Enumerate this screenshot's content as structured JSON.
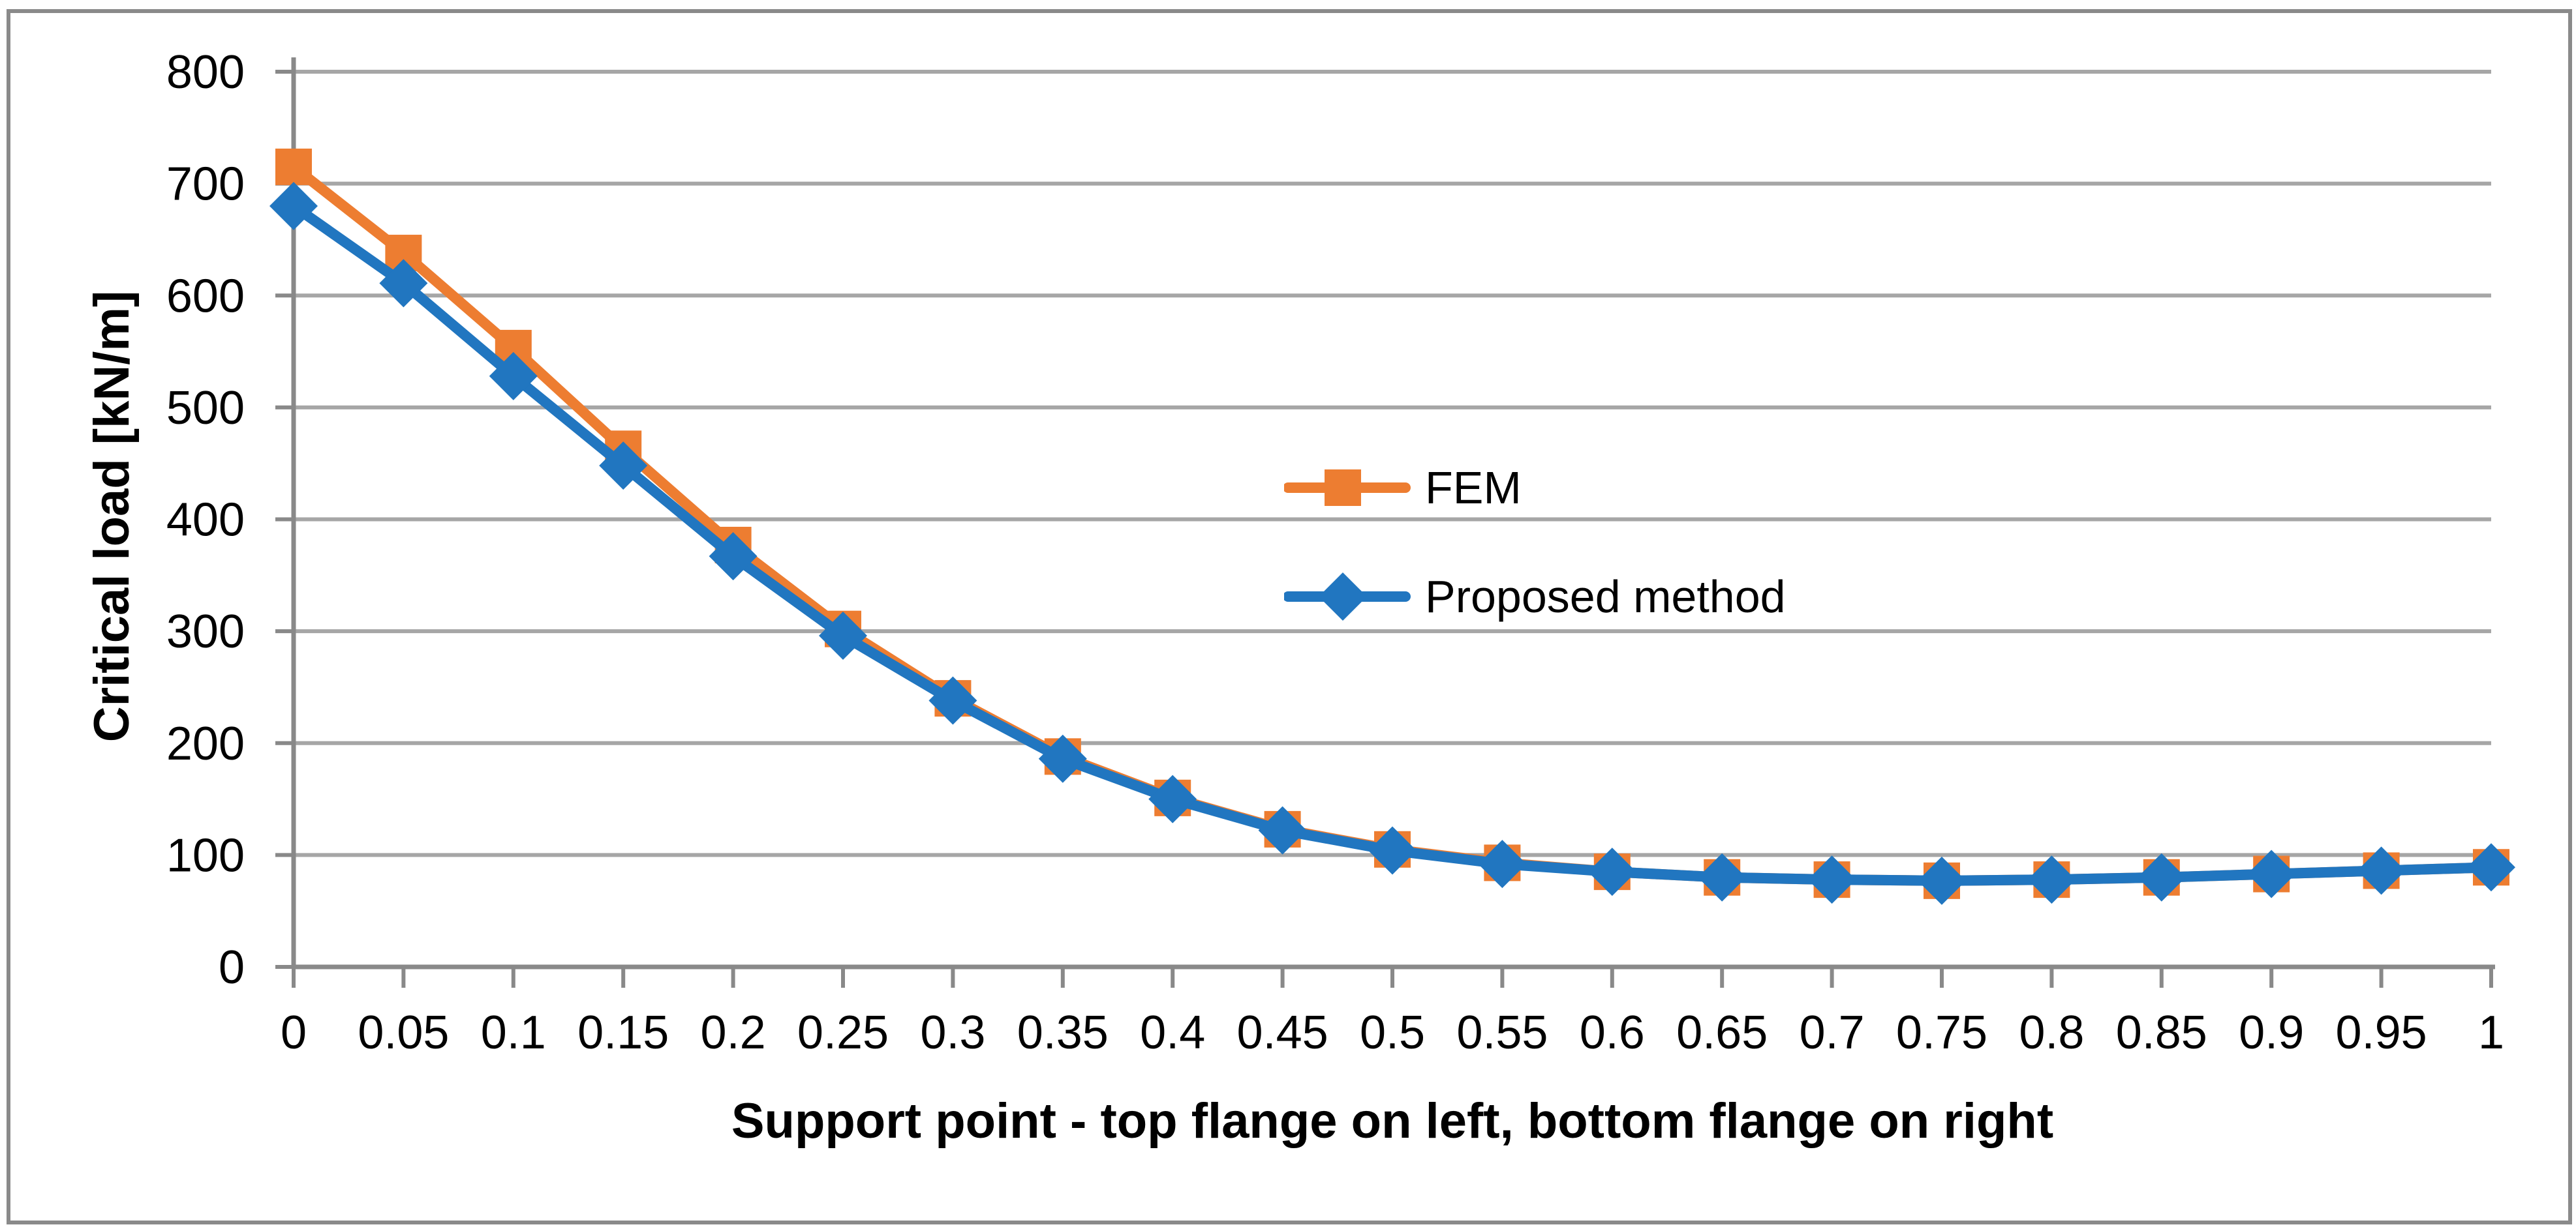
{
  "chart_data": {
    "type": "line",
    "title": "",
    "xlabel": "Support point - top flange on left, bottom flange on right",
    "ylabel": "Critical load [kN/m]",
    "x_categories": [
      "0",
      "0.05",
      "0.1",
      "0.15",
      "0.2",
      "0.25",
      "0.3",
      "0.35",
      "0.4",
      "0.45",
      "0.5",
      "0.55",
      "0.6",
      "0.65",
      "0.7",
      "0.75",
      "0.8",
      "0.85",
      "0.9",
      "0.95",
      "1"
    ],
    "ylim": [
      0,
      800
    ],
    "y_ticks": [
      0,
      100,
      200,
      300,
      400,
      500,
      600,
      700,
      800
    ],
    "grid": "horizontal-only",
    "legend_position": "inside-plot-center",
    "series": [
      {
        "name": "FEM",
        "color": "#ED7D31",
        "marker": "square",
        "values": [
          715,
          638,
          553,
          463,
          377,
          302,
          240,
          188,
          151,
          123,
          105,
          93,
          85,
          80,
          78,
          77,
          78,
          80,
          83,
          86,
          89
        ]
      },
      {
        "name": "Proposed method",
        "color": "#2176C0",
        "marker": "diamond",
        "values": [
          680,
          611,
          528,
          448,
          367,
          296,
          238,
          186,
          150,
          122,
          104,
          92,
          85,
          80,
          78,
          77,
          78,
          80,
          83,
          86,
          89
        ]
      }
    ]
  },
  "colors": {
    "series_fem": "#ED7D31",
    "series_proposed": "#2176C0",
    "gridline": "#A6A6A6",
    "axis": "#898989",
    "border": "#8A8A8A",
    "text": "#000000",
    "background": "#FFFFFF"
  }
}
